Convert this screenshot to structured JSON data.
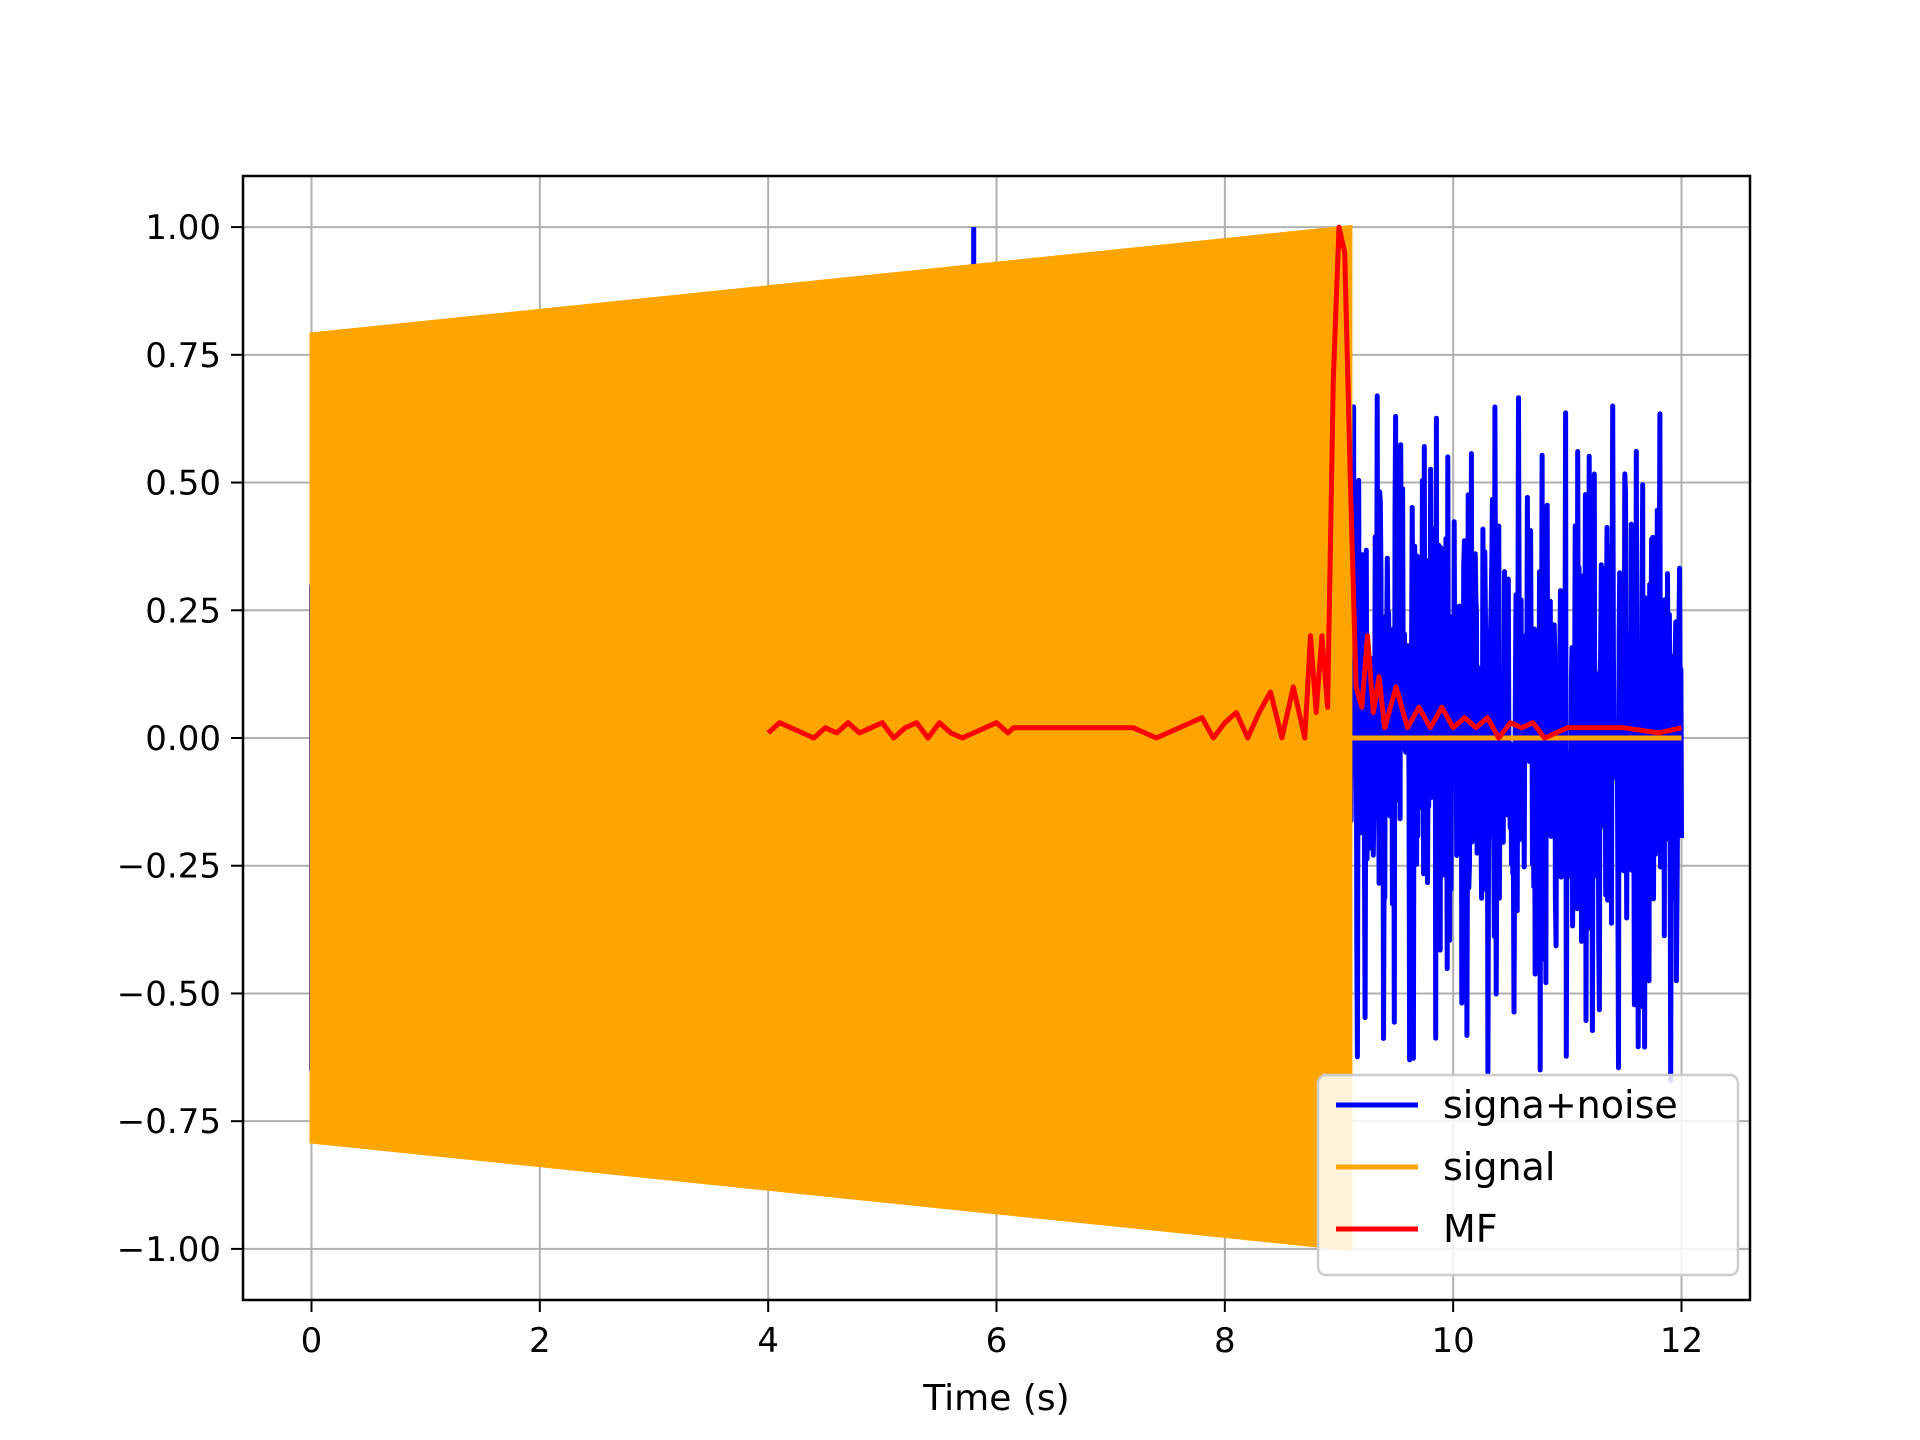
{
  "chart_data": {
    "type": "line",
    "title": "",
    "xlabel": "Time (s)",
    "ylabel": "",
    "xlim": [
      -0.6,
      12.6
    ],
    "ylim": [
      -1.1,
      1.1
    ],
    "grid": true,
    "legend_position": "lower-right",
    "xticks": [
      0,
      2,
      4,
      6,
      8,
      10,
      12
    ],
    "xtick_labels": [
      "0",
      "2",
      "4",
      "6",
      "8",
      "10",
      "12"
    ],
    "yticks": [
      1.0,
      0.75,
      0.5,
      0.25,
      0.0,
      -0.25,
      -0.5,
      -0.75,
      -1.0
    ],
    "ytick_labels": [
      "1.00",
      "0.75",
      "0.50",
      "0.25",
      "0.00",
      "−0.25",
      "−0.50",
      "−0.75",
      "−1.00"
    ],
    "series": [
      {
        "name": "signa+noise",
        "color": "#0000ff",
        "description_points": {
          "x": [
            0,
            5.8,
            5.8,
            9.1,
            9.5,
            10.0,
            10.3,
            11.0,
            11.2,
            12.0
          ],
          "y": [
            0.3,
            0.9,
            1.0,
            0.5,
            0.35,
            0.52,
            0.65,
            0.55,
            0.67,
            0.42
          ]
        },
        "noise_range_after_signal": {
          "x_start": 9.1,
          "x_end": 12.0,
          "min": -0.7,
          "max": 0.7
        }
      },
      {
        "name": "signal",
        "color": "#ffa500",
        "envelope": {
          "x": [
            0,
            9.1
          ],
          "upper": [
            0.79,
            1.0
          ],
          "lower": [
            -0.79,
            -1.0
          ]
        },
        "after_signal": {
          "x": [
            9.1,
            12.0
          ],
          "y": [
            0.0,
            0.0
          ]
        }
      },
      {
        "name": "MF",
        "color": "#ff0000",
        "x": [
          4.0,
          4.1,
          4.2,
          4.3,
          4.4,
          4.5,
          4.6,
          4.7,
          4.8,
          4.9,
          5.0,
          5.1,
          5.2,
          5.3,
          5.4,
          5.5,
          5.6,
          5.7,
          5.8,
          5.9,
          6.0,
          6.1,
          6.15,
          6.5,
          7.0,
          7.2,
          7.4,
          7.6,
          7.8,
          7.9,
          8.0,
          8.1,
          8.2,
          8.3,
          8.4,
          8.5,
          8.6,
          8.7,
          8.75,
          8.8,
          8.85,
          8.9,
          8.95,
          9.0,
          9.05,
          9.1,
          9.15,
          9.2,
          9.25,
          9.3,
          9.35,
          9.4,
          9.5,
          9.6,
          9.7,
          9.8,
          9.9,
          10.0,
          10.1,
          10.2,
          10.3,
          10.4,
          10.5,
          10.6,
          10.7,
          10.8,
          11.0,
          11.2,
          11.5,
          11.8,
          12.0
        ],
        "y": [
          0.01,
          0.03,
          0.02,
          0.01,
          0.0,
          0.02,
          0.01,
          0.03,
          0.01,
          0.02,
          0.03,
          0.0,
          0.02,
          0.03,
          0.0,
          0.03,
          0.01,
          0.0,
          0.01,
          0.02,
          0.03,
          0.01,
          0.02,
          0.02,
          0.02,
          0.02,
          0.0,
          0.02,
          0.04,
          0.0,
          0.03,
          0.05,
          0.0,
          0.05,
          0.09,
          0.0,
          0.1,
          0.0,
          0.2,
          0.05,
          0.2,
          0.06,
          0.7,
          1.0,
          0.95,
          0.5,
          0.1,
          0.06,
          0.2,
          0.05,
          0.12,
          0.02,
          0.1,
          0.02,
          0.06,
          0.02,
          0.06,
          0.02,
          0.04,
          0.02,
          0.04,
          0.0,
          0.03,
          0.02,
          0.03,
          0.0,
          0.02,
          0.02,
          0.02,
          0.01,
          0.02
        ]
      }
    ]
  }
}
